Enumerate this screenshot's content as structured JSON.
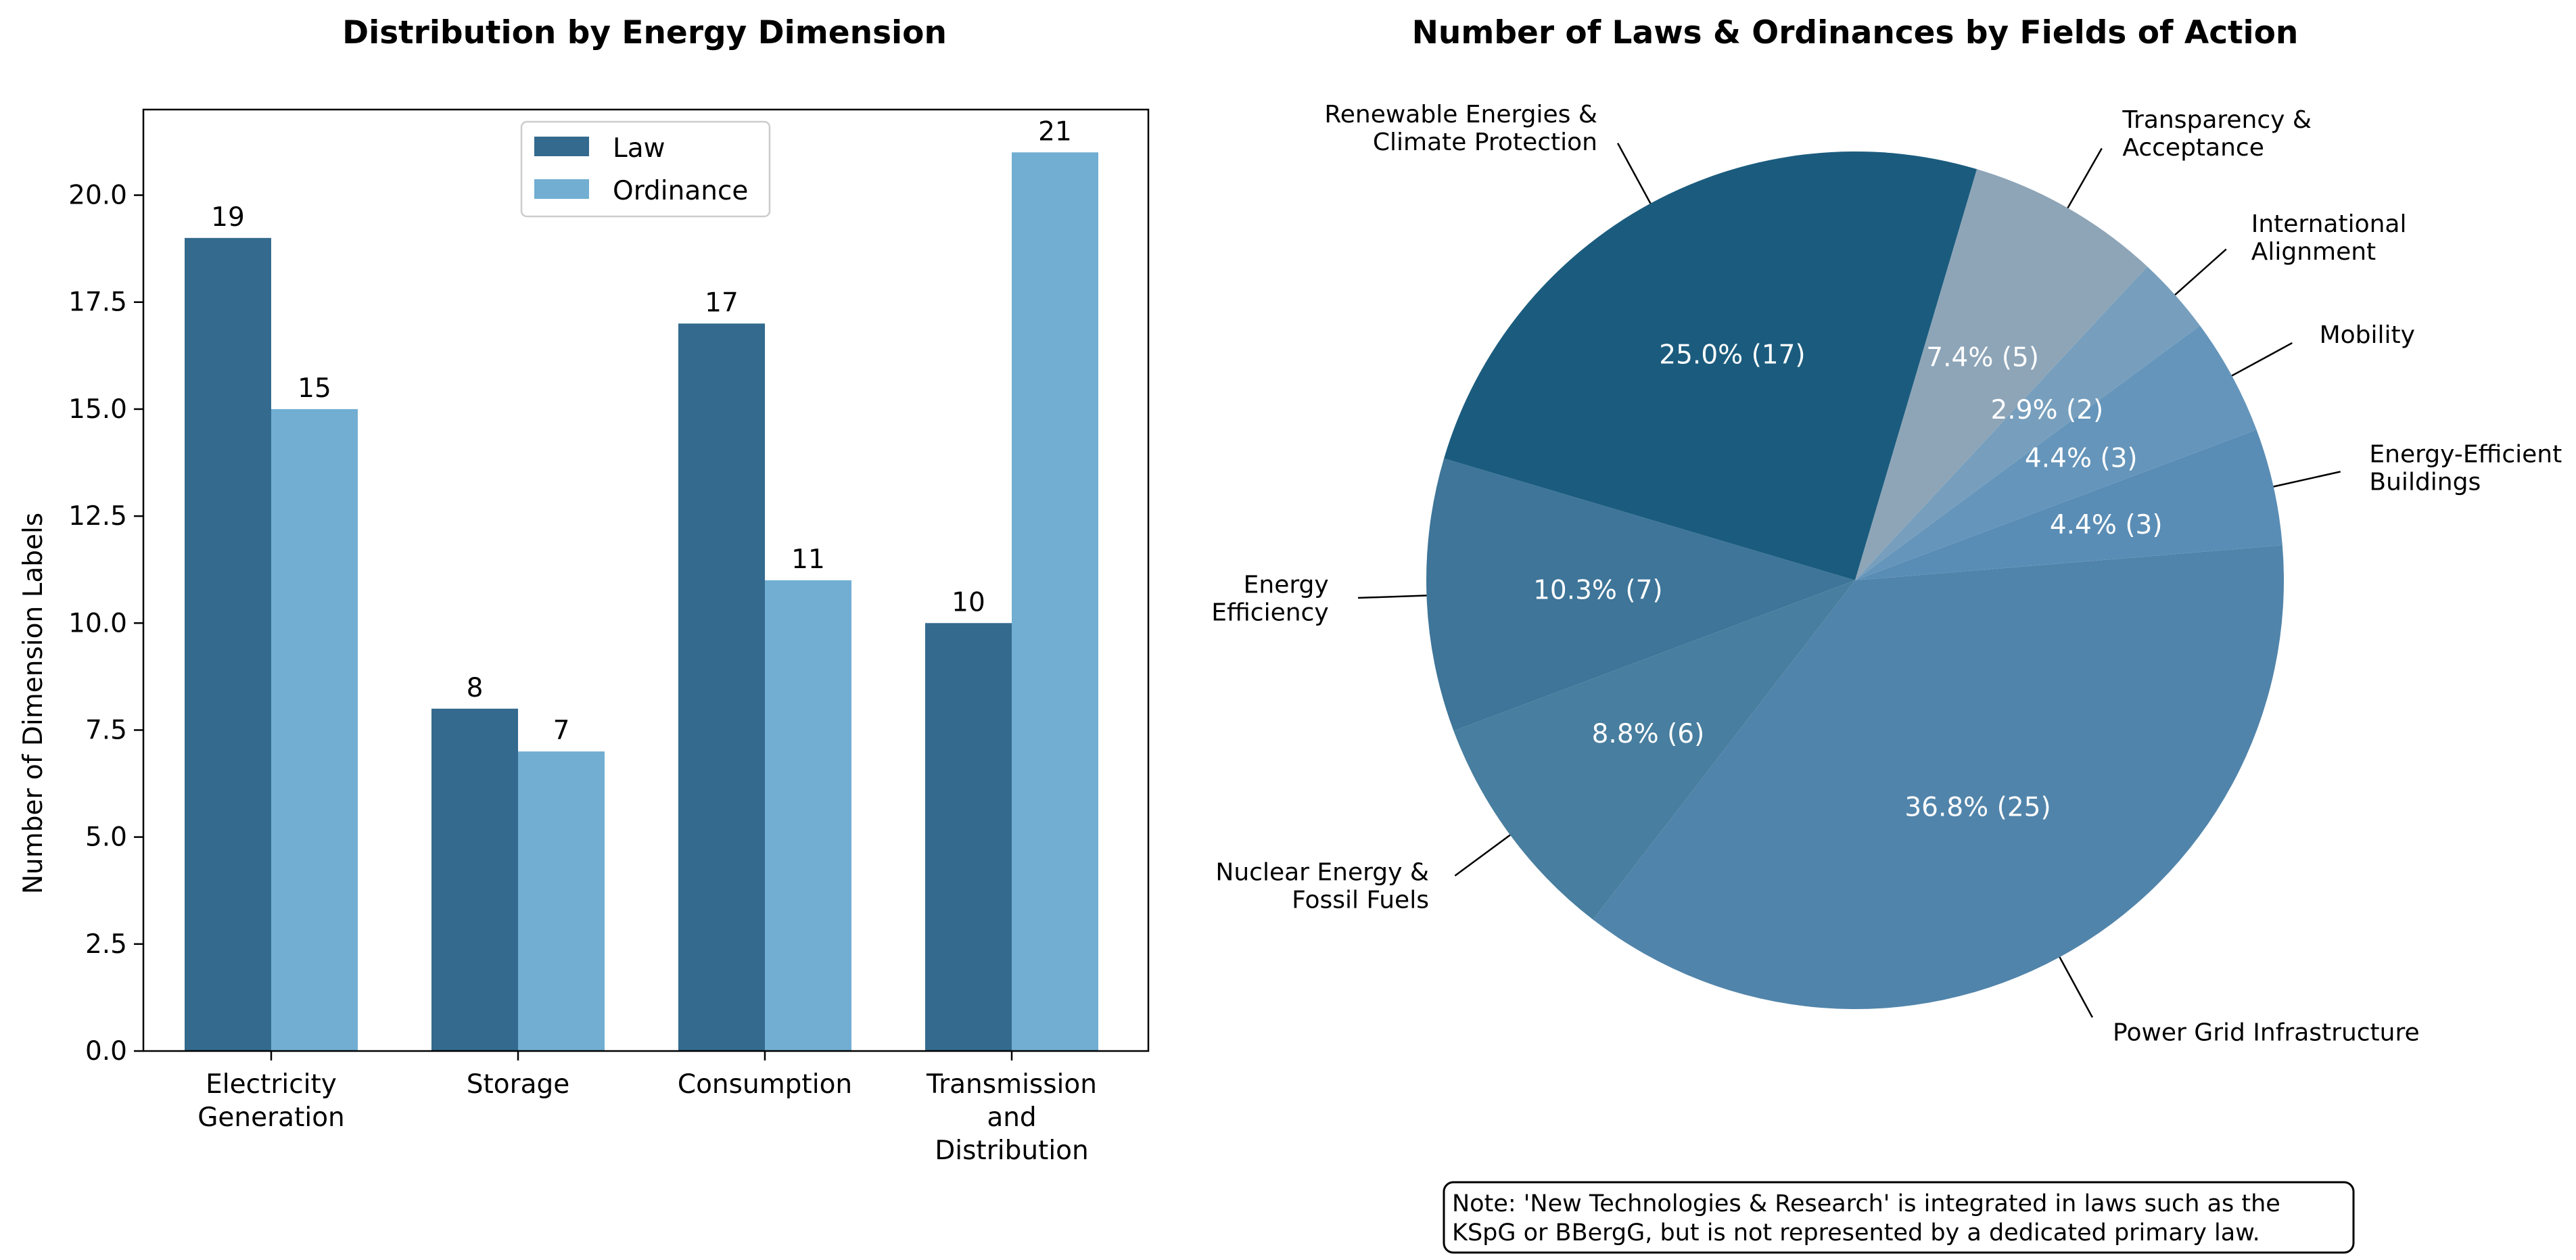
{
  "chart_data": [
    {
      "type": "bar",
      "title": "Distribution by Energy Dimension",
      "xlabel": "",
      "ylabel": "Number of Dimension Labels",
      "categories": [
        [
          "Electricity",
          "Generation"
        ],
        [
          "Storage"
        ],
        [
          "Consumption"
        ],
        [
          "Transmission",
          "and",
          "Distribution"
        ]
      ],
      "series": [
        {
          "name": "Law",
          "color": "#336a8e",
          "values": [
            19,
            8,
            17,
            10
          ]
        },
        {
          "name": "Ordinance",
          "color": "#71aed2",
          "values": [
            15,
            7,
            11,
            21
          ]
        }
      ],
      "ylim": [
        0,
        22
      ],
      "yticks": [
        "0.0",
        "2.5",
        "5.0",
        "7.5",
        "10.0",
        "12.5",
        "15.0",
        "17.5",
        "20.0"
      ],
      "legend": "top-center",
      "grid": false
    },
    {
      "type": "pie",
      "title": "Number of Laws & Ordinances by Fields of Action",
      "start_angle_deg": 73.5,
      "direction": "counterclockwise",
      "slices": [
        {
          "label": [
            "Renewable Energies &",
            "Climate Protection"
          ],
          "value": 17,
          "pct_label": "25.0% (17)",
          "color": "#1b5c7e"
        },
        {
          "label": [
            "Energy",
            "Efficiency"
          ],
          "value": 7,
          "pct_label": "10.3% (7)",
          "color": "#3e7599"
        },
        {
          "label": [
            "Nuclear Energy &",
            "Fossil Fuels"
          ],
          "value": 6,
          "pct_label": "8.8% (6)",
          "color": "#487e9f"
        },
        {
          "label": [
            "Power Grid Infrastructure"
          ],
          "value": 25,
          "pct_label": "36.8% (25)",
          "color": "#5184aa"
        },
        {
          "label": [
            "Energy-Efficient",
            "Buildings"
          ],
          "value": 3,
          "pct_label": "4.4% (3)",
          "color": "#5a8db5"
        },
        {
          "label": [
            "Mobility"
          ],
          "value": 3,
          "pct_label": "4.4% (3)",
          "color": "#6595ba"
        },
        {
          "label": [
            "International",
            "Alignment"
          ],
          "value": 2,
          "pct_label": "2.9% (2)",
          "color": "#779fbd"
        },
        {
          "label": [
            "Transparency &",
            "Acceptance"
          ],
          "value": 5,
          "pct_label": "7.4% (5)",
          "color": "#8ea5b8"
        }
      ],
      "note": [
        "Note: 'New Technologies & Research' is integrated in laws such as the",
        "KSpG or BBergG, but is not represented by a dedicated primary law."
      ]
    }
  ]
}
